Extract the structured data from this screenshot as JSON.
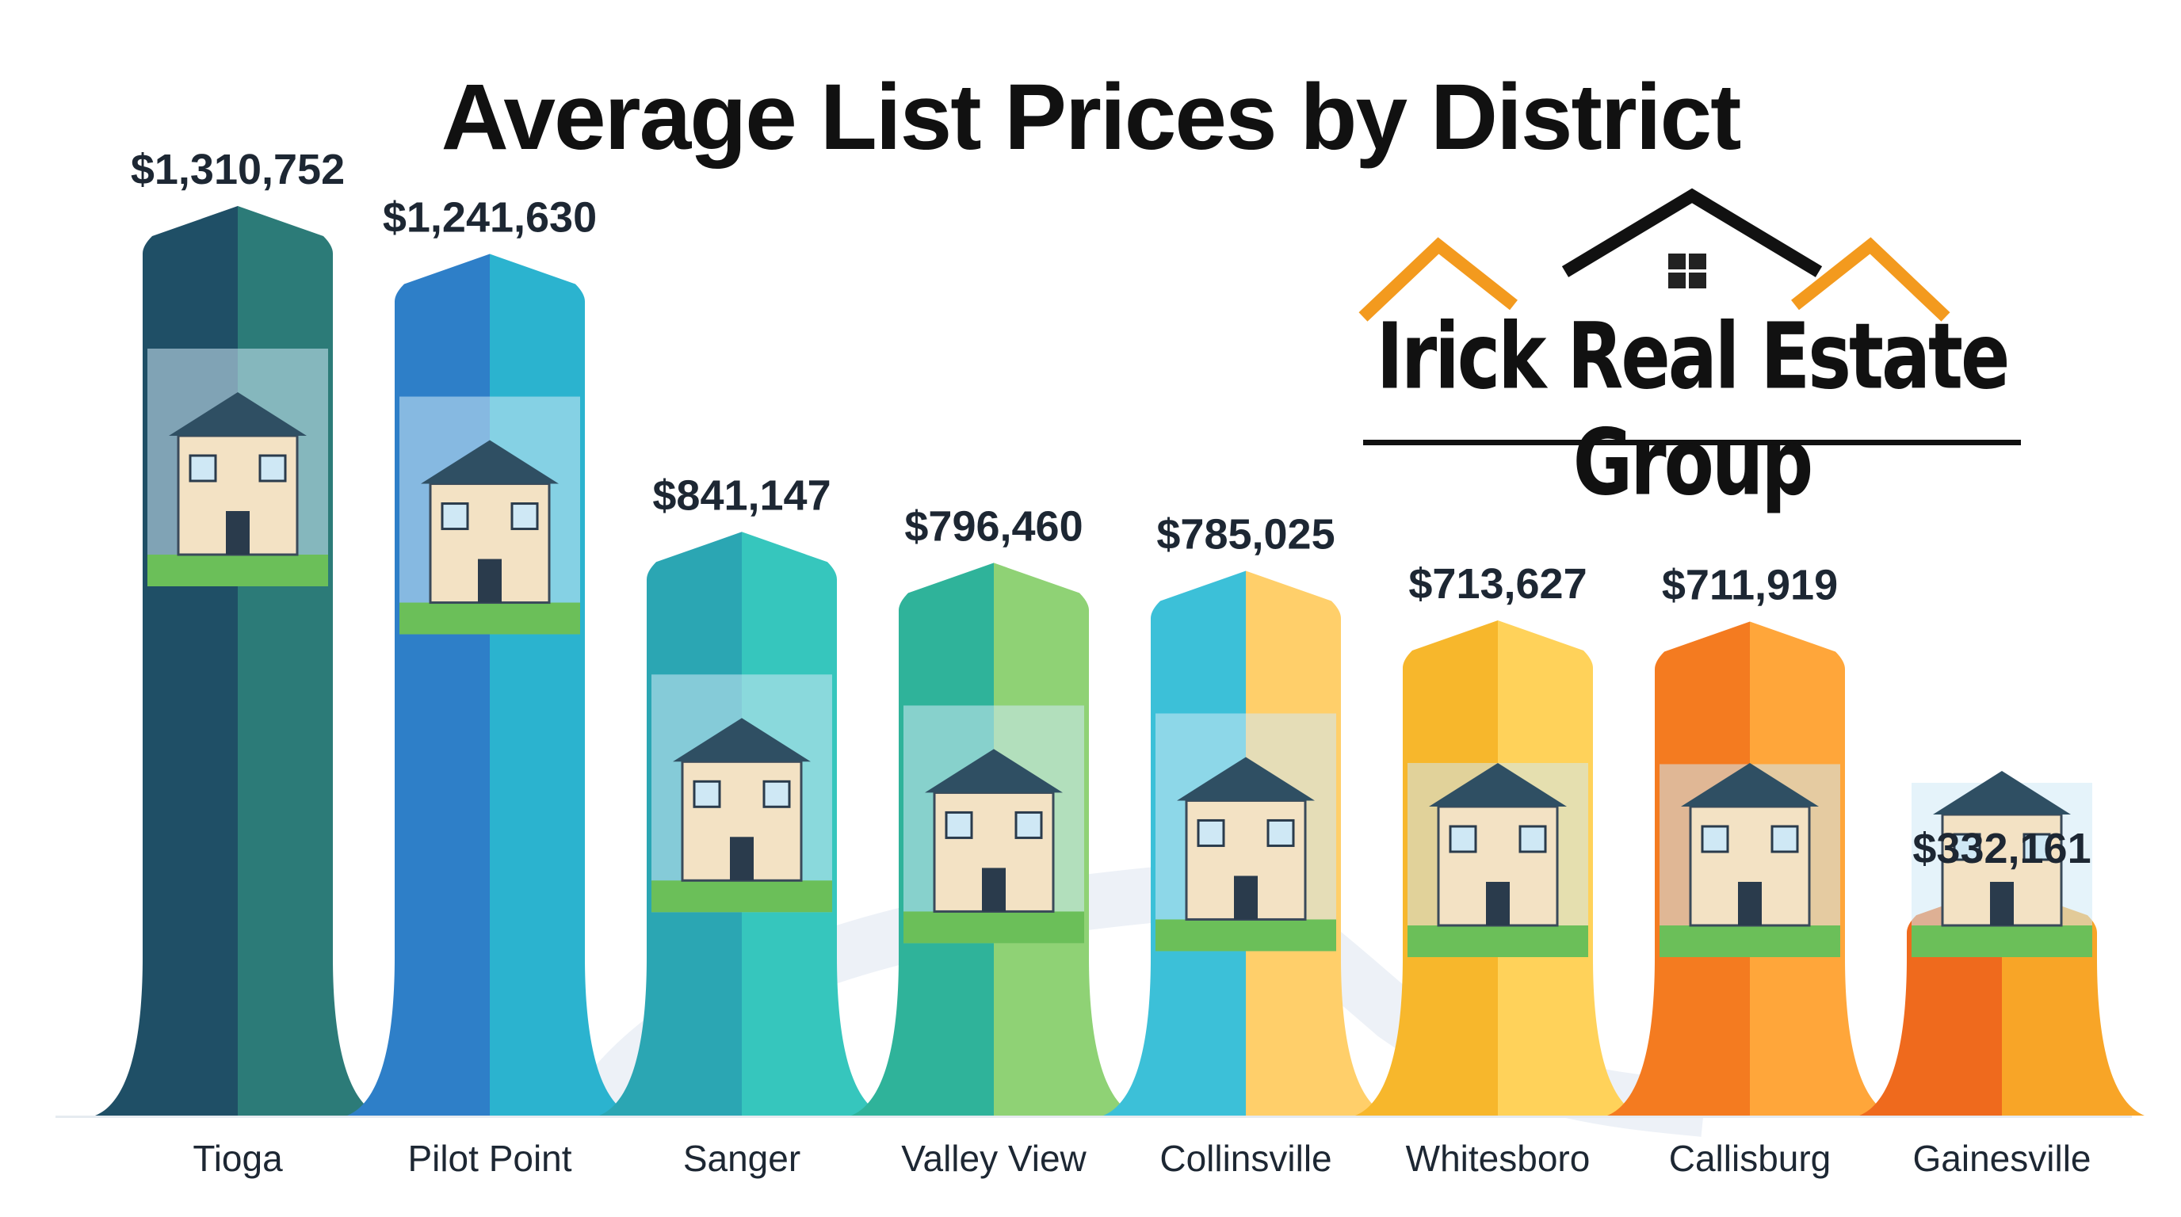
{
  "chart_data": {
    "type": "bar",
    "title": "Average List Prices by District",
    "categories": [
      "Tioga",
      "Pilot Point",
      "Sanger",
      "Valley View",
      "Collinsville",
      "Whitesboro",
      "Callisburg",
      "Gainesville"
    ],
    "values": [
      1310752,
      1241630,
      841147,
      796460,
      785025,
      713627,
      711919,
      332161
    ],
    "value_labels": [
      "$1,310,752",
      "$1,241,630",
      "$841,147",
      "$796,460",
      "$785,025",
      "$713,627",
      "$711,919",
      "$332,161"
    ],
    "grid": false,
    "legend": "none"
  },
  "logo": {
    "text": "Irick Real Estate Group",
    "colors": {
      "roof_side": "#f39a1e",
      "roof_center": "#111111"
    }
  },
  "colors": {
    "bars": [
      [
        "#1f4f66",
        "#2c7b78"
      ],
      [
        "#2e7fc8",
        "#2bb3cf"
      ],
      [
        "#2ba6b3",
        "#36c6bd"
      ],
      [
        "#2fb39a",
        "#8fd275"
      ],
      [
        "#3cc0d8",
        "#ffcf6a"
      ],
      [
        "#f7b72c",
        "#ffd25a"
      ],
      [
        "#f47b20",
        "#ffa63a"
      ],
      [
        "#ef6a1d",
        "#f8a527"
      ]
    ],
    "sky": "#cfeaf6",
    "grass": "#6bbf59",
    "path": "#e8eef5"
  }
}
